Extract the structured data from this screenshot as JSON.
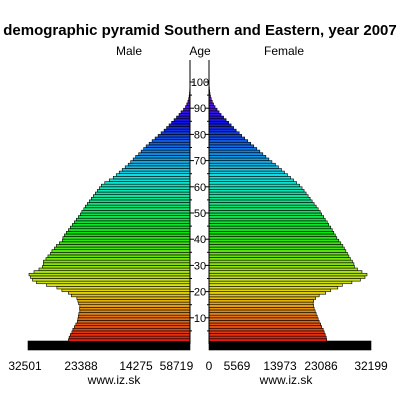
{
  "chart_data": {
    "type": "bar",
    "title": "demographic pyramid Southern and Eastern, year 2007",
    "left_label": "Male",
    "center_label": "Age",
    "right_label": "Female",
    "source_left": "www.iz.sk",
    "source_right": "www.iz.sk",
    "age_ticks": [
      "10",
      "20",
      "30",
      "40",
      "50",
      "60",
      "70",
      "80",
      "90",
      "100"
    ],
    "male_axis_ticks": [
      "32501",
      "23388",
      "14275",
      "5871",
      "9"
    ],
    "female_axis_ticks": [
      "0",
      "5569",
      "13973",
      "23086",
      "32199"
    ],
    "male_axis_range": [
      9,
      32501
    ],
    "female_axis_range": [
      0,
      32199
    ],
    "age_range": [
      0,
      100
    ],
    "ages": [
      0,
      1,
      2,
      3,
      4,
      5,
      6,
      7,
      8,
      9,
      10,
      11,
      12,
      13,
      14,
      15,
      16,
      17,
      18,
      19,
      20,
      21,
      22,
      23,
      24,
      25,
      26,
      27,
      28,
      29,
      30,
      31,
      32,
      33,
      34,
      35,
      36,
      37,
      38,
      39,
      40,
      41,
      42,
      43,
      44,
      45,
      46,
      47,
      48,
      49,
      50,
      51,
      52,
      53,
      54,
      55,
      56,
      57,
      58,
      59,
      60,
      61,
      62,
      63,
      64,
      65,
      66,
      67,
      68,
      69,
      70,
      71,
      72,
      73,
      74,
      75,
      76,
      77,
      78,
      79,
      80,
      81,
      82,
      83,
      84,
      85,
      86,
      87,
      88,
      89,
      90,
      91,
      92,
      93,
      94,
      95,
      96,
      97,
      98,
      99,
      100
    ],
    "series": [
      {
        "name": "Male",
        "values": [
          32501,
          24400,
          24250,
          24000,
          23700,
          23500,
          23200,
          22900,
          22600,
          22500,
          22400,
          22300,
          22100,
          22150,
          22100,
          22350,
          22500,
          22700,
          23800,
          24400,
          25700,
          26700,
          28800,
          30800,
          31600,
          32000,
          32300,
          31300,
          30300,
          29600,
          29400,
          29400,
          28900,
          28500,
          28000,
          27700,
          27200,
          26800,
          26200,
          25600,
          25500,
          25200,
          24800,
          24400,
          24000,
          23600,
          23200,
          22800,
          22400,
          22000,
          21700,
          21300,
          21000,
          20600,
          20200,
          19800,
          19400,
          19000,
          18600,
          18200,
          17800,
          17100,
          16200,
          15400,
          14800,
          14200,
          13600,
          13000,
          12400,
          11900,
          11400,
          10900,
          10300,
          9800,
          9300,
          8800,
          8200,
          7600,
          7000,
          6400,
          5800,
          5200,
          4700,
          4200,
          3700,
          3200,
          2700,
          2200,
          1800,
          1300,
          900,
          650,
          420,
          270,
          170,
          110,
          70,
          45,
          30,
          18,
          12
        ]
      },
      {
        "name": "Female",
        "values": [
          32199,
          23400,
          23300,
          23100,
          22900,
          22700,
          22400,
          22200,
          21900,
          21700,
          21500,
          21300,
          21100,
          20900,
          20800,
          20700,
          20800,
          21200,
          21900,
          23200,
          24200,
          25600,
          26500,
          28400,
          30100,
          31000,
          31400,
          30400,
          29500,
          28900,
          28800,
          28500,
          28100,
          27800,
          27500,
          27200,
          26900,
          26600,
          26200,
          25800,
          25400,
          25100,
          24800,
          24500,
          24200,
          23800,
          23500,
          23100,
          22800,
          22400,
          22100,
          21700,
          21300,
          20900,
          20500,
          20100,
          19700,
          19300,
          18900,
          18500,
          18000,
          17400,
          16800,
          16200,
          15600,
          15000,
          14400,
          13800,
          13200,
          12500,
          11900,
          11300,
          10700,
          10100,
          9500,
          8900,
          8300,
          7700,
          7100,
          6500,
          6000,
          5400,
          4900,
          4400,
          3900,
          3400,
          2900,
          2400,
          2000,
          1600,
          1200,
          900,
          650,
          450,
          300,
          200,
          130,
          80,
          50,
          30,
          20
        ]
      }
    ],
    "bar_colors": "rainbow by age (red at 0 through orange, yellow, green, cyan, blue to violet at 100)"
  }
}
